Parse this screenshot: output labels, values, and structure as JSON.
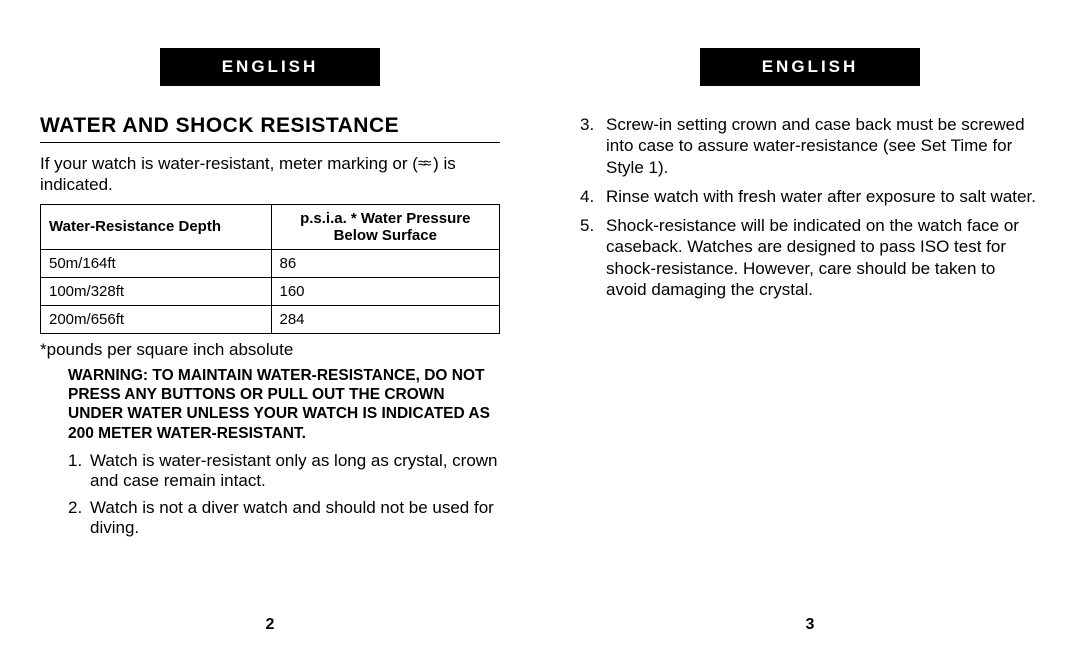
{
  "left": {
    "language_label": "ENGLISH",
    "section_title": "WATER AND SHOCK RESISTANCE",
    "intro_part1": "If your watch is water-resistant, meter marking or (",
    "intro_wave": "≈≈",
    "intro_part2": " ) is indicated.",
    "table": {
      "col1_header": "Water-Resistance Depth",
      "col2_header_line1": "p.s.i.a. * Water Pressure",
      "col2_header_line2": "Below Surface",
      "rows": [
        {
          "depth": "50m/164ft",
          "psia": "86"
        },
        {
          "depth": "100m/328ft",
          "psia": "160"
        },
        {
          "depth": "200m/656ft",
          "psia": "284"
        }
      ]
    },
    "footnote": "*pounds per square inch absolute",
    "warning": "WARNING: TO MAINTAIN WATER-RESISTANCE, DO NOT PRESS ANY BUTTONS OR PULL OUT THE CROWN UNDER WATER UNLESS YOUR WATCH IS INDICATED AS 200 METER WATER-RESISTANT.",
    "items": [
      {
        "num": "1.",
        "text": "Watch is water-resistant only as long as crystal, crown and case remain intact."
      },
      {
        "num": "2.",
        "text": "Watch is not a diver watch and should not be used for diving."
      }
    ],
    "page_number": "2"
  },
  "right": {
    "language_label": "ENGLISH",
    "items": [
      {
        "num": "3.",
        "text": "Screw-in setting crown and case back must be screwed into case to assure water-resistance (see Set Time for Style 1)."
      },
      {
        "num": "4.",
        "text": "Rinse watch with fresh water after exposure to salt water."
      },
      {
        "num": "5.",
        "text": "Shock-resistance will be indicated on the watch face or caseback. Watches are designed to pass ISO test for shock-resistance. However, care should be taken to avoid damaging the crystal."
      }
    ],
    "page_number": "3"
  }
}
